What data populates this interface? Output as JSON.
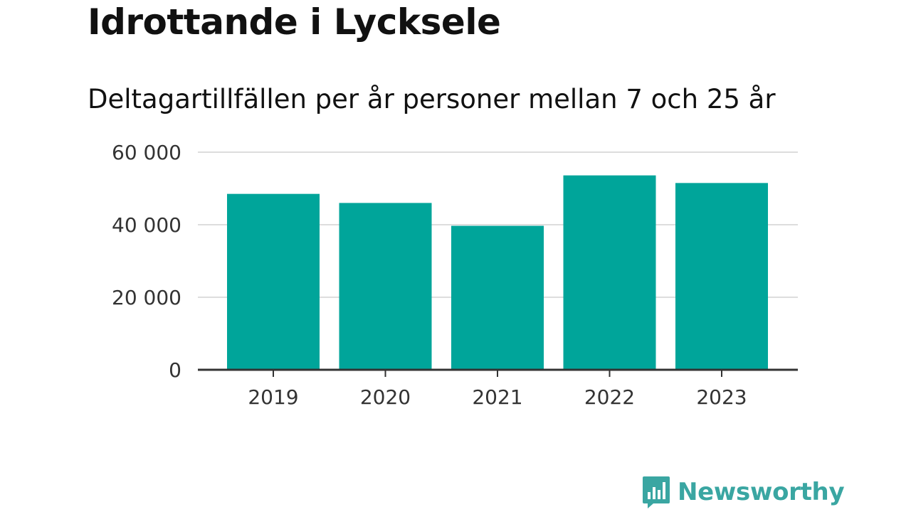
{
  "header": {
    "title": "Idrottande i Lycksele",
    "subtitle": "Deltagartillfällen per år personer mellan 7 och 25 år"
  },
  "brand": {
    "name": "Newsworthy",
    "icon": "bar-chart-speech-bubble-icon",
    "color": "#3aa6a2"
  },
  "chart_data": {
    "type": "bar",
    "categories": [
      "2019",
      "2020",
      "2021",
      "2022",
      "2023"
    ],
    "values": [
      48500,
      46000,
      39700,
      53600,
      51500
    ],
    "ylim": [
      0,
      60000
    ],
    "yticks": [
      0,
      20000,
      40000,
      60000
    ],
    "ytick_labels": [
      "0",
      "20 000",
      "40 000",
      "60 000"
    ],
    "grid": true,
    "bar_color": "#00a59a",
    "xlabel": "",
    "ylabel": ""
  }
}
